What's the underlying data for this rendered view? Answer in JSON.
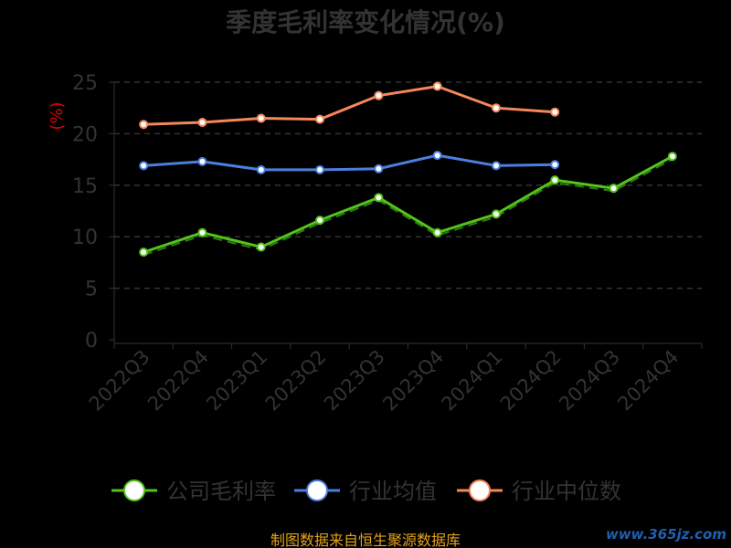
{
  "chart_data": {
    "type": "line",
    "title": "季度毛利率变化情况(%)",
    "ylabel": "(%)",
    "xlabel": "",
    "ylim": [
      0,
      25
    ],
    "yticks": [
      0,
      5,
      10,
      15,
      20,
      25
    ],
    "grid": true,
    "legend_position": "bottom",
    "categories": [
      "2022Q3",
      "2022Q4",
      "2023Q1",
      "2023Q2",
      "2023Q3",
      "2023Q4",
      "2024Q1",
      "2024Q2",
      "2024Q3",
      "2024Q4"
    ],
    "series": [
      {
        "name": "公司毛利率",
        "color": "#52c41a",
        "values": [
          8.5,
          10.4,
          9.0,
          11.6,
          13.8,
          10.4,
          12.2,
          15.5,
          14.7,
          17.8
        ]
      },
      {
        "name": "行业均值",
        "color": "#4a7fe0",
        "values": [
          16.9,
          17.3,
          16.5,
          16.5,
          16.6,
          17.9,
          16.9,
          17.0,
          null,
          null
        ]
      },
      {
        "name": "行业中位数",
        "color": "#f5875a",
        "values": [
          20.9,
          21.1,
          21.5,
          21.4,
          23.7,
          24.6,
          22.5,
          22.1,
          null,
          null
        ]
      }
    ]
  },
  "source_text": "制图数据来自恒生聚源数据库",
  "watermark": "www.365jz.com"
}
